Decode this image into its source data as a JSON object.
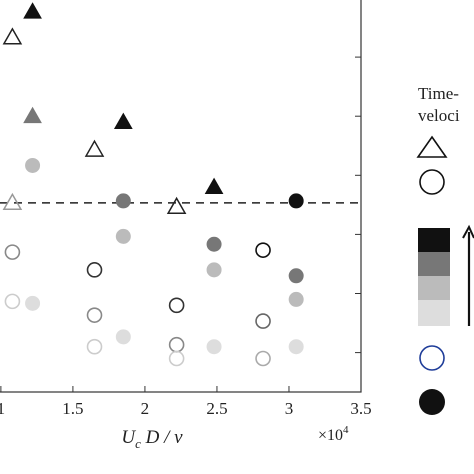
{
  "chart_data": {
    "type": "scatter",
    "title": "",
    "xlabel": "U_c D / ν",
    "xlabel_parts": [
      "U",
      "c",
      " D / ",
      "ν"
    ],
    "x_multiplier": "×10",
    "x_multiplier_exp": "4",
    "xlim": [
      0.98,
      3.5
    ],
    "ylim": [
      0,
      1
    ],
    "x_ticks": [
      "1",
      "1.5",
      "2",
      "2.5",
      "3",
      "3.5"
    ],
    "x_tick_values": [
      1,
      1.5,
      2,
      2.5,
      3,
      3.5
    ],
    "reference_line_y": 0.48,
    "series": [
      {
        "marker": "triangle-filled",
        "points": [
          {
            "x": 1.22,
            "y": 0.965,
            "shade": "#111111"
          },
          {
            "x": 1.22,
            "y": 0.7,
            "shade": "#777777"
          },
          {
            "x": 1.85,
            "y": 0.685,
            "shade": "#111111"
          },
          {
            "x": 2.48,
            "y": 0.52,
            "shade": "#111111"
          }
        ]
      },
      {
        "marker": "triangle-open",
        "points": [
          {
            "x": 1.08,
            "y": 0.9,
            "color": "#222222"
          },
          {
            "x": 1.08,
            "y": 0.48,
            "color": "#999999"
          },
          {
            "x": 1.65,
            "y": 0.615,
            "color": "#222222"
          },
          {
            "x": 2.22,
            "y": 0.47,
            "color": "#222222"
          }
        ]
      },
      {
        "marker": "circle-filled",
        "points": [
          {
            "x": 1.22,
            "y": 0.575,
            "shade": "#bbbbbb"
          },
          {
            "x": 1.22,
            "y": 0.225,
            "shade": "#dddddd"
          },
          {
            "x": 1.85,
            "y": 0.485,
            "shade": "#777777"
          },
          {
            "x": 1.85,
            "y": 0.395,
            "shade": "#bbbbbb"
          },
          {
            "x": 1.85,
            "y": 0.14,
            "shade": "#dddddd"
          },
          {
            "x": 2.48,
            "y": 0.375,
            "shade": "#777777"
          },
          {
            "x": 2.48,
            "y": 0.31,
            "shade": "#bbbbbb"
          },
          {
            "x": 2.48,
            "y": 0.115,
            "shade": "#dddddd"
          },
          {
            "x": 3.05,
            "y": 0.485,
            "shade": "#111111"
          },
          {
            "x": 3.05,
            "y": 0.295,
            "shade": "#777777"
          },
          {
            "x": 3.05,
            "y": 0.235,
            "shade": "#bbbbbb"
          },
          {
            "x": 3.05,
            "y": 0.115,
            "shade": "#dddddd"
          }
        ]
      },
      {
        "marker": "circle-open",
        "points": [
          {
            "x": 1.08,
            "y": 0.355,
            "color": "#888888"
          },
          {
            "x": 1.08,
            "y": 0.23,
            "color": "#cccccc"
          },
          {
            "x": 1.65,
            "y": 0.31,
            "color": "#333333"
          },
          {
            "x": 1.65,
            "y": 0.195,
            "color": "#888888"
          },
          {
            "x": 1.65,
            "y": 0.115,
            "color": "#cccccc"
          },
          {
            "x": 2.22,
            "y": 0.22,
            "color": "#333333"
          },
          {
            "x": 2.22,
            "y": 0.12,
            "color": "#888888"
          },
          {
            "x": 2.22,
            "y": 0.085,
            "color": "#cccccc"
          },
          {
            "x": 2.82,
            "y": 0.36,
            "color": "#111111"
          },
          {
            "x": 2.82,
            "y": 0.18,
            "color": "#666666"
          },
          {
            "x": 2.82,
            "y": 0.085,
            "color": "#aaaaaa"
          }
        ]
      }
    ],
    "legend": {
      "title_lines": [
        "Time-",
        "veloci"
      ],
      "shade_scale": [
        "#111111",
        "#777777",
        "#bbbbbb",
        "#dddddd"
      ],
      "open_circle_color": "#1f3d99",
      "filled_circle_color": "#111111"
    },
    "grid": false
  }
}
